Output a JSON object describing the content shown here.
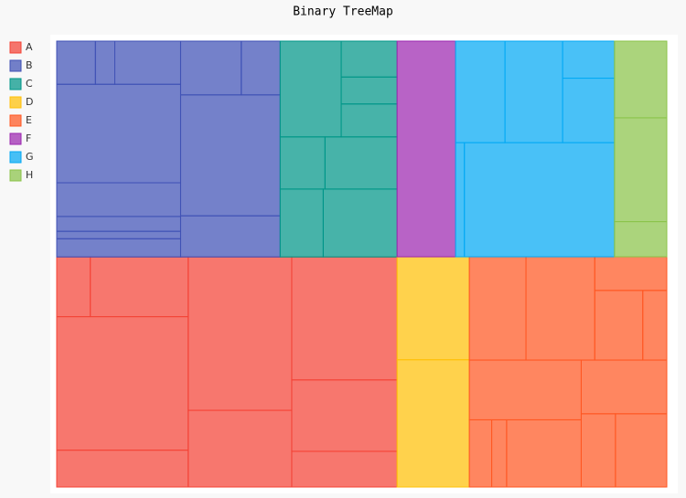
{
  "chart_data": {
    "type": "treemap",
    "title": "Binary TreeMap",
    "series": [
      {
        "name": "A",
        "color": "#F44336",
        "values": [
          58,
          210,
          24,
          70,
          95,
          190,
          45,
          90,
          155
        ]
      },
      {
        "name": "B",
        "color": "#3F51B5",
        "values": [
          27,
          11,
          22,
          50,
          146,
          20,
          10,
          34,
          49,
          144,
          39,
          25
        ]
      },
      {
        "name": "C",
        "color": "#009688",
        "values": [
          35,
          60,
          28,
          45,
          70,
          22,
          18,
          24
        ]
      },
      {
        "name": "D",
        "color": "#FFC107",
        "values": [
          110,
          89
        ]
      },
      {
        "name": "E",
        "color": "#FF5722",
        "values": [
          18,
          12,
          60,
          80,
          30,
          45,
          55,
          70,
          85,
          40,
          20,
          29
        ]
      },
      {
        "name": "F",
        "color": "#9C27B0",
        "values": [
          151
        ]
      },
      {
        "name": "G",
        "color": "#03A9F4",
        "values": [
          12,
          205,
          60,
          70,
          40,
          23
        ]
      },
      {
        "name": "H",
        "color": "#8BC34A",
        "values": [
          22,
          65,
          48
        ]
      }
    ]
  }
}
